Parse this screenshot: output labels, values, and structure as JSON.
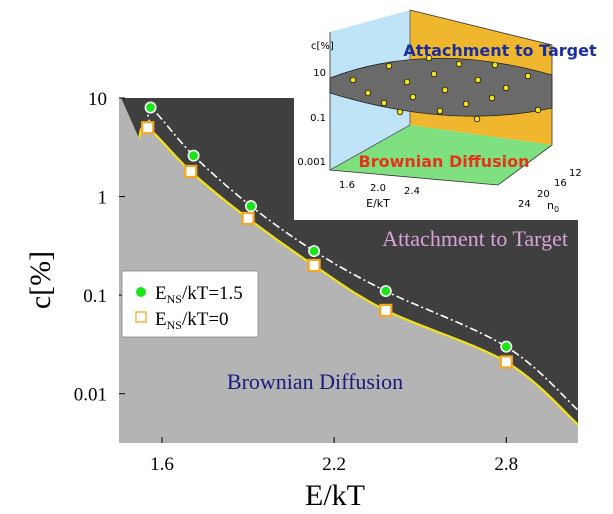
{
  "colors": {
    "dark_region": "#3f3f3f",
    "light_region": "#b4b4b4",
    "boundary_line": "#f2e21a",
    "series_green": "#19e619",
    "series_orange": "#f5a623",
    "attachment_label": "#d9a3d9",
    "diffusion_label": "#1a1a80",
    "inset_blue_wall": "#bfe4f8",
    "inset_orange_wall": "#f0b62e",
    "inset_green_floor": "#7fe07f",
    "inset_surface": "#6a6a6a",
    "inset_point": "#f2e21a",
    "inset_attachment_label": "#1a2f9e",
    "inset_diffusion_label": "#e6341a"
  },
  "chart_data": [
    {
      "type": "scatter",
      "xlabel": "E/kT",
      "ylabel": "c[%]",
      "xlim": [
        1.45,
        3.05
      ],
      "ylim_log10": [
        -2.5,
        1
      ],
      "y_scale": "log",
      "x_ticks": [
        "1.6",
        "2.2",
        "2.8"
      ],
      "y_ticks": [
        "10",
        "1",
        "0.1",
        "0.01"
      ],
      "region_labels": {
        "upper": "Attachment to Target",
        "lower": "Brownian Diffusion"
      },
      "legend": {
        "placement": "left",
        "items": [
          {
            "label_main": "E",
            "label_sub": "NS",
            "label_rest": "/kT=1.5",
            "marker": "circle"
          },
          {
            "label_main": "E",
            "label_sub": "NS",
            "label_rest": "/kT=0",
            "marker": "square"
          }
        ]
      },
      "series": [
        {
          "name": "E_NS/kT=1.5",
          "marker": "circle",
          "x": [
            1.56,
            1.71,
            1.91,
            2.13,
            2.38,
            2.8
          ],
          "y": [
            8,
            2.6,
            0.8,
            0.28,
            0.11,
            0.03
          ],
          "trend_line": "dash-dot"
        },
        {
          "name": "E_NS/kT=0",
          "marker": "square",
          "x": [
            1.55,
            1.7,
            1.9,
            2.13,
            2.38,
            2.8
          ],
          "y": [
            5,
            1.8,
            0.6,
            0.2,
            0.07,
            0.021
          ]
        }
      ]
    },
    {
      "type": "surface-3d",
      "title": "",
      "zlabel": "c[%]",
      "xlabel": "E/kT",
      "ylabel_main": "n",
      "ylabel_sub": "0",
      "z_ticks": [
        "10",
        "0.1",
        "0.001"
      ],
      "x_ticks": [
        "1.6",
        "2.0",
        "2.4"
      ],
      "y_ticks": [
        "12",
        "16",
        "20",
        "24"
      ],
      "region_labels": {
        "upper": "Attachment to Target",
        "lower": "Brownian Diffusion"
      },
      "point_count": 20
    }
  ]
}
